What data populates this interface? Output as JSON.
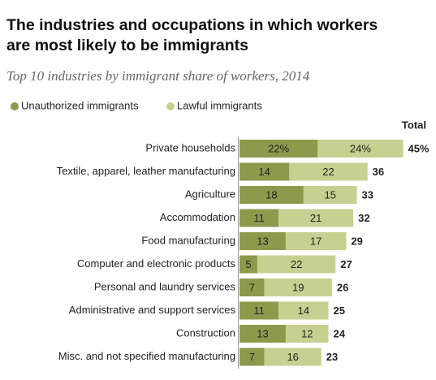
{
  "chart_data": {
    "type": "stacked-bar",
    "title": [
      "The industries and occupations in which workers",
      "are most likely to be immigrants"
    ],
    "subtitle": "Top 10 industries by immigrant share of workers, 2014",
    "categories": [
      "Private households",
      "Textile, apparel, leather manufacturing",
      "Agriculture",
      "Accommodation",
      "Food manufacturing",
      "Computer and electronic products",
      "Personal and laundry services",
      "Administrative and support services",
      "Construction",
      "Misc. and not specified manufacturing"
    ],
    "series": [
      {
        "name": "Unauthorized immigrants",
        "color": "#8d9a4c",
        "values": [
          22,
          14,
          18,
          11,
          13,
          5,
          7,
          11,
          13,
          7
        ],
        "value_labels": [
          "22%",
          "14",
          "18",
          "11",
          "13",
          "5",
          "7",
          "11",
          "13",
          "7"
        ]
      },
      {
        "name": "Lawful immigrants",
        "color": "#c6d191",
        "values": [
          24,
          22,
          15,
          21,
          17,
          22,
          19,
          14,
          12,
          16
        ],
        "value_labels": [
          "24%",
          "22",
          "15",
          "21",
          "17",
          "22",
          "19",
          "14",
          "12",
          "16"
        ]
      }
    ],
    "totals": {
      "title": "Total",
      "values": [
        45,
        36,
        33,
        32,
        29,
        27,
        26,
        25,
        24,
        23
      ],
      "value_labels": [
        "45%",
        "36",
        "33",
        "32",
        "29",
        "27",
        "26",
        "25",
        "24",
        "23"
      ]
    }
  }
}
